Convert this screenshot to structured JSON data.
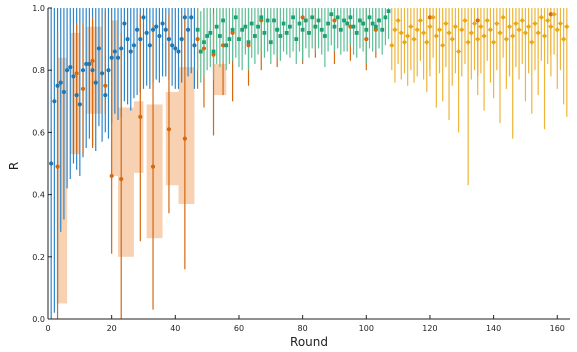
{
  "chart_data": {
    "type": "scatter",
    "title": "",
    "xlabel": "Round",
    "ylabel": "R",
    "xlim": [
      0,
      164
    ],
    "ylim": [
      0,
      1
    ],
    "xticks": [
      0,
      20,
      40,
      60,
      80,
      100,
      120,
      140,
      160
    ],
    "yticks": [
      0.0,
      0.2,
      0.4,
      0.6,
      0.8,
      1.0
    ],
    "grid": false,
    "legend": "none",
    "colors": {
      "blue": "#1f77b4",
      "blue_error": "#2e86c9",
      "orange": "#d4690f",
      "orange_band": "#f7c9a5",
      "green": "#1f9e74",
      "green_error": "#5bbf97",
      "yellow": "#e6a817",
      "yellow_error": "#edb53a"
    },
    "series": [
      {
        "color_key": "blue",
        "error_color_key": "blue_error",
        "marker": "circle",
        "points": [
          [
            1,
            0.5,
            0.0,
            1.0
          ],
          [
            2,
            0.7,
            0.02,
            1.0
          ],
          [
            3,
            0.75,
            0.05,
            1.0
          ],
          [
            4,
            0.76,
            0.28,
            1.0
          ],
          [
            5,
            0.73,
            0.32,
            1.0
          ],
          [
            6,
            0.8,
            0.42,
            1.0
          ],
          [
            7,
            0.81,
            0.45,
            1.0
          ],
          [
            8,
            0.78,
            0.5,
            1.0
          ],
          [
            9,
            0.72,
            0.48,
            1.0
          ],
          [
            10,
            0.69,
            0.46,
            1.0
          ],
          [
            11,
            0.8,
            0.52,
            1.0
          ],
          [
            12,
            0.82,
            0.55,
            1.0
          ],
          [
            13,
            0.82,
            0.58,
            1.0
          ],
          [
            14,
            0.8,
            0.56,
            1.0
          ],
          [
            15,
            0.76,
            0.54,
            1.0
          ],
          [
            16,
            0.87,
            0.62,
            1.0
          ],
          [
            17,
            0.79,
            0.57,
            1.0
          ],
          [
            18,
            0.72,
            0.6,
            1.0
          ],
          [
            19,
            0.8,
            0.58,
            1.0
          ],
          [
            20,
            0.84,
            0.63,
            1.0
          ],
          [
            21,
            0.86,
            0.66,
            1.0
          ],
          [
            22,
            0.84,
            0.64,
            1.0
          ],
          [
            23,
            0.87,
            0.65,
            1.0
          ],
          [
            24,
            0.95,
            0.7,
            1.0
          ],
          [
            25,
            0.9,
            0.69,
            1.0
          ],
          [
            26,
            0.86,
            0.67,
            1.0
          ],
          [
            27,
            0.88,
            0.71,
            1.0
          ],
          [
            28,
            0.93,
            0.72,
            1.0
          ],
          [
            29,
            0.9,
            0.73,
            1.0
          ],
          [
            30,
            0.97,
            0.74,
            1.0
          ],
          [
            31,
            0.92,
            0.75,
            1.0
          ],
          [
            32,
            0.88,
            0.74,
            1.0
          ],
          [
            33,
            0.93,
            0.76,
            1.0
          ],
          [
            34,
            0.94,
            0.77,
            1.0
          ],
          [
            35,
            0.91,
            0.76,
            1.0
          ],
          [
            36,
            0.95,
            0.78,
            1.0
          ],
          [
            37,
            0.93,
            0.78,
            1.0
          ],
          [
            38,
            0.9,
            0.77,
            1.0
          ],
          [
            39,
            0.88,
            0.75,
            1.0
          ],
          [
            40,
            0.87,
            0.74,
            1.0
          ],
          [
            41,
            0.86,
            0.74,
            1.0
          ],
          [
            42,
            0.9,
            0.76,
            1.0
          ],
          [
            43,
            0.97,
            0.8,
            1.0
          ],
          [
            44,
            0.93,
            0.78,
            1.0
          ],
          [
            45,
            0.97,
            0.79,
            1.0
          ],
          [
            46,
            0.88,
            0.74,
            1.0
          ]
        ]
      },
      {
        "color_key": "orange",
        "marker": "circle",
        "points": [
          [
            3,
            0.49,
            0.0,
            0.92
          ],
          [
            9,
            0.79,
            0.53,
            0.95
          ],
          [
            11,
            0.74,
            0.53,
            0.95
          ],
          [
            14,
            0.83,
            0.55,
            0.97
          ],
          [
            18,
            0.75,
            0.66,
            0.99
          ],
          [
            20,
            0.46,
            0.21,
            0.96
          ],
          [
            23,
            0.45,
            0.0,
            0.92
          ],
          [
            29,
            0.65,
            0.25,
            0.98
          ],
          [
            33,
            0.49,
            0.03,
            0.95
          ],
          [
            38,
            0.61,
            0.34,
            0.98
          ],
          [
            43,
            0.58,
            0.16,
            0.98
          ],
          [
            47,
            0.9,
            0.74,
            1.0
          ],
          [
            49,
            0.87,
            0.68,
            1.0
          ],
          [
            52,
            0.85,
            0.59,
            1.0
          ],
          [
            55,
            0.88,
            0.72,
            1.0
          ],
          [
            58,
            0.92,
            0.7,
            1.0
          ],
          [
            63,
            0.88,
            0.75,
            1.0
          ],
          [
            67,
            0.96,
            0.8,
            1.0
          ],
          [
            72,
            0.93,
            0.81,
            1.0
          ],
          [
            80,
            0.97,
            0.82,
            1.0
          ],
          [
            84,
            0.94,
            0.84,
            1.0
          ],
          [
            90,
            0.96,
            0.82,
            1.0
          ],
          [
            95,
            0.94,
            0.83,
            1.0
          ],
          [
            100,
            0.9,
            0.8,
            1.0
          ],
          [
            103,
            0.93,
            0.84,
            1.0
          ],
          [
            120,
            0.97,
            0.8,
            1.0
          ],
          [
            135,
            0.96,
            0.78,
            1.0
          ],
          [
            158,
            0.98,
            0.85,
            1.0
          ]
        ],
        "bands": [
          [
            3,
            6,
            0.05,
            0.84
          ],
          [
            7,
            10,
            0.53,
            0.92
          ],
          [
            12,
            17,
            0.66,
            0.94
          ],
          [
            20,
            22,
            0.46,
            0.96
          ],
          [
            22,
            27,
            0.2,
            0.68
          ],
          [
            27,
            30,
            0.47,
            0.7
          ],
          [
            31,
            36,
            0.26,
            0.69
          ],
          [
            37,
            41,
            0.43,
            0.73
          ],
          [
            41,
            46,
            0.37,
            0.81
          ],
          [
            52,
            56,
            0.72,
            0.82
          ]
        ]
      },
      {
        "color_key": "green",
        "error_color_key": "green_error",
        "marker": "square",
        "points": [
          [
            47,
            0.93,
            0.8,
            1.0
          ],
          [
            48,
            0.86,
            0.76,
            0.99
          ],
          [
            49,
            0.89,
            0.78,
            1.0
          ],
          [
            50,
            0.91,
            0.8,
            1.0
          ],
          [
            51,
            0.92,
            0.81,
            1.0
          ],
          [
            52,
            0.86,
            0.77,
            0.98
          ],
          [
            53,
            0.94,
            0.82,
            1.0
          ],
          [
            54,
            0.91,
            0.81,
            1.0
          ],
          [
            55,
            0.96,
            0.83,
            1.0
          ],
          [
            56,
            0.88,
            0.8,
            1.0
          ],
          [
            57,
            0.9,
            0.82,
            1.0
          ],
          [
            58,
            0.93,
            0.83,
            1.0
          ],
          [
            59,
            0.97,
            0.84,
            1.0
          ],
          [
            60,
            0.9,
            0.81,
            1.0
          ],
          [
            61,
            0.93,
            0.8,
            1.0
          ],
          [
            62,
            0.94,
            0.85,
            1.0
          ],
          [
            63,
            0.89,
            0.8,
            1.0
          ],
          [
            64,
            0.95,
            0.84,
            1.0
          ],
          [
            65,
            0.91,
            0.82,
            1.0
          ],
          [
            66,
            0.94,
            0.85,
            1.0
          ],
          [
            67,
            0.97,
            0.86,
            1.0
          ],
          [
            68,
            0.92,
            0.84,
            1.0
          ],
          [
            69,
            0.96,
            0.86,
            1.0
          ],
          [
            70,
            0.89,
            0.82,
            1.0
          ],
          [
            71,
            0.96,
            0.85,
            1.0
          ],
          [
            72,
            0.93,
            0.84,
            1.0
          ],
          [
            73,
            0.91,
            0.83,
            1.0
          ],
          [
            74,
            0.95,
            0.86,
            1.0
          ],
          [
            75,
            0.92,
            0.85,
            1.0
          ],
          [
            76,
            0.94,
            0.84,
            1.0
          ],
          [
            77,
            0.97,
            0.86,
            1.0
          ],
          [
            78,
            0.9,
            0.82,
            1.0
          ],
          [
            79,
            0.95,
            0.86,
            1.0
          ],
          [
            80,
            0.93,
            0.83,
            1.0
          ],
          [
            81,
            0.96,
            0.87,
            1.0
          ],
          [
            82,
            0.92,
            0.84,
            1.0
          ],
          [
            83,
            0.97,
            0.87,
            1.0
          ],
          [
            84,
            0.94,
            0.86,
            1.0
          ],
          [
            85,
            0.96,
            0.87,
            1.0
          ],
          [
            86,
            0.93,
            0.85,
            1.0
          ],
          [
            87,
            0.91,
            0.81,
            1.0
          ],
          [
            88,
            0.95,
            0.86,
            1.0
          ],
          [
            89,
            0.98,
            0.88,
            1.0
          ],
          [
            90,
            0.94,
            0.86,
            1.0
          ],
          [
            91,
            0.97,
            0.87,
            1.0
          ],
          [
            92,
            0.93,
            0.85,
            1.0
          ],
          [
            93,
            0.96,
            0.86,
            1.0
          ],
          [
            94,
            0.95,
            0.86,
            1.0
          ],
          [
            95,
            0.97,
            0.88,
            1.0
          ],
          [
            96,
            0.94,
            0.85,
            1.0
          ],
          [
            97,
            0.92,
            0.84,
            1.0
          ],
          [
            98,
            0.96,
            0.87,
            1.0
          ],
          [
            99,
            0.95,
            0.86,
            1.0
          ],
          [
            100,
            0.93,
            0.82,
            1.0
          ],
          [
            101,
            0.97,
            0.87,
            1.0
          ],
          [
            102,
            0.95,
            0.86,
            1.0
          ],
          [
            103,
            0.94,
            0.86,
            1.0
          ],
          [
            104,
            0.96,
            0.87,
            1.0
          ],
          [
            105,
            0.93,
            0.85,
            1.0
          ],
          [
            106,
            0.97,
            0.88,
            1.0
          ],
          [
            107,
            0.99,
            0.9,
            1.0
          ]
        ]
      },
      {
        "color_key": "yellow",
        "error_color_key": "yellow_error",
        "marker": "diamond",
        "points": [
          [
            108,
            0.88,
            0.8,
            1.0
          ],
          [
            109,
            0.93,
            0.76,
            1.0
          ],
          [
            110,
            0.96,
            0.82,
            1.0
          ],
          [
            111,
            0.92,
            0.77,
            1.0
          ],
          [
            112,
            0.89,
            0.79,
            1.0
          ],
          [
            113,
            0.91,
            0.75,
            1.0
          ],
          [
            114,
            0.94,
            0.8,
            1.0
          ],
          [
            115,
            0.9,
            0.76,
            1.0
          ],
          [
            116,
            0.93,
            0.78,
            1.0
          ],
          [
            117,
            0.96,
            0.83,
            1.0
          ],
          [
            118,
            0.92,
            0.77,
            1.0
          ],
          [
            119,
            0.89,
            0.73,
            1.0
          ],
          [
            120,
            0.94,
            0.78,
            1.0
          ],
          [
            121,
            0.97,
            0.84,
            1.0
          ],
          [
            122,
            0.91,
            0.68,
            1.0
          ],
          [
            123,
            0.93,
            0.79,
            1.0
          ],
          [
            124,
            0.88,
            0.7,
            1.0
          ],
          [
            125,
            0.95,
            0.81,
            1.0
          ],
          [
            126,
            0.92,
            0.64,
            1.0
          ],
          [
            127,
            0.9,
            0.75,
            1.0
          ],
          [
            128,
            0.94,
            0.79,
            1.0
          ],
          [
            129,
            0.86,
            0.6,
            1.0
          ],
          [
            130,
            0.93,
            0.78,
            1.0
          ],
          [
            131,
            0.96,
            0.82,
            1.0
          ],
          [
            132,
            0.89,
            0.43,
            1.0
          ],
          [
            133,
            0.92,
            0.77,
            1.0
          ],
          [
            134,
            0.95,
            0.8,
            1.0
          ],
          [
            135,
            0.9,
            0.72,
            1.0
          ],
          [
            136,
            0.94,
            0.79,
            1.0
          ],
          [
            137,
            0.91,
            0.67,
            1.0
          ],
          [
            138,
            0.96,
            0.83,
            1.0
          ],
          [
            139,
            0.93,
            0.76,
            1.0
          ],
          [
            140,
            0.89,
            0.71,
            1.0
          ],
          [
            141,
            0.95,
            0.8,
            1.0
          ],
          [
            142,
            0.92,
            0.63,
            1.0
          ],
          [
            143,
            0.97,
            0.84,
            1.0
          ],
          [
            144,
            0.9,
            0.74,
            1.0
          ],
          [
            145,
            0.94,
            0.78,
            1.0
          ],
          [
            146,
            0.91,
            0.58,
            1.0
          ],
          [
            147,
            0.95,
            0.81,
            1.0
          ],
          [
            148,
            0.93,
            0.77,
            1.0
          ],
          [
            149,
            0.96,
            0.82,
            1.0
          ],
          [
            150,
            0.92,
            0.7,
            1.0
          ],
          [
            151,
            0.94,
            0.79,
            1.0
          ],
          [
            152,
            0.89,
            0.66,
            1.0
          ],
          [
            153,
            0.95,
            0.8,
            1.0
          ],
          [
            154,
            0.92,
            0.72,
            1.0
          ],
          [
            155,
            0.97,
            0.83,
            1.0
          ],
          [
            156,
            0.91,
            0.61,
            1.0
          ],
          [
            157,
            0.96,
            0.82,
            1.0
          ],
          [
            158,
            0.94,
            0.78,
            1.0
          ],
          [
            159,
            0.98,
            0.85,
            1.0
          ],
          [
            160,
            0.93,
            0.74,
            1.0
          ],
          [
            161,
            0.95,
            0.8,
            1.0
          ],
          [
            162,
            0.9,
            0.69,
            1.0
          ],
          [
            163,
            0.94,
            0.65,
            1.0
          ]
        ]
      }
    ]
  }
}
